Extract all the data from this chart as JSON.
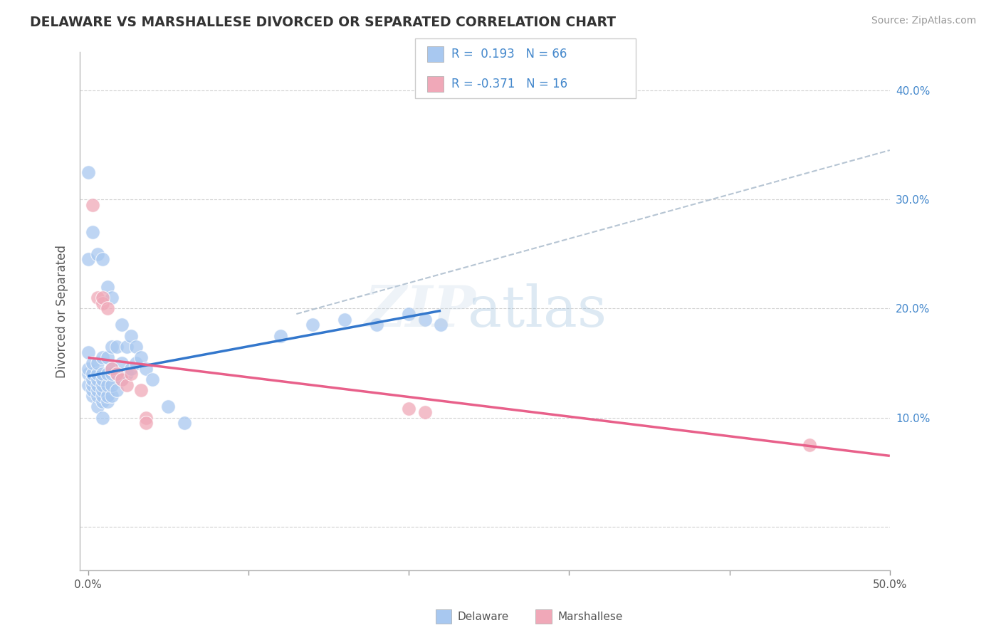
{
  "title": "DELAWARE VS MARSHALLESE DIVORCED OR SEPARATED CORRELATION CHART",
  "source": "Source: ZipAtlas.com",
  "ylabel": "Divorced or Separated",
  "ytick_values": [
    0.0,
    0.1,
    0.2,
    0.3,
    0.4
  ],
  "xlim": [
    -0.005,
    0.5
  ],
  "ylim": [
    -0.04,
    0.435
  ],
  "delaware_R": 0.193,
  "delaware_N": 66,
  "marshallese_R": -0.371,
  "marshallese_N": 16,
  "delaware_color": "#a8c8f0",
  "marshallese_color": "#f0a8b8",
  "delaware_line_color": "#3377cc",
  "marshallese_line_color": "#e8608a",
  "trend_line_color": "#aabbcc",
  "background_color": "#ffffff",
  "grid_color": "#cccccc",
  "delaware_x": [
    0.0,
    0.0,
    0.0,
    0.0,
    0.003,
    0.003,
    0.003,
    0.003,
    0.003,
    0.003,
    0.006,
    0.006,
    0.006,
    0.006,
    0.006,
    0.006,
    0.006,
    0.009,
    0.009,
    0.009,
    0.009,
    0.009,
    0.009,
    0.009,
    0.009,
    0.012,
    0.012,
    0.012,
    0.012,
    0.012,
    0.015,
    0.015,
    0.015,
    0.015,
    0.015,
    0.018,
    0.018,
    0.018,
    0.021,
    0.021,
    0.021,
    0.024,
    0.024,
    0.027,
    0.027,
    0.03,
    0.03,
    0.033,
    0.036,
    0.04,
    0.05,
    0.06,
    0.12,
    0.14,
    0.16,
    0.18,
    0.2,
    0.21,
    0.22,
    0.0,
    0.0,
    0.003,
    0.006,
    0.009,
    0.012,
    0.015
  ],
  "delaware_y": [
    0.13,
    0.14,
    0.145,
    0.16,
    0.12,
    0.125,
    0.13,
    0.135,
    0.14,
    0.15,
    0.11,
    0.12,
    0.125,
    0.13,
    0.135,
    0.14,
    0.15,
    0.1,
    0.115,
    0.12,
    0.125,
    0.13,
    0.135,
    0.14,
    0.155,
    0.115,
    0.12,
    0.13,
    0.14,
    0.155,
    0.12,
    0.13,
    0.14,
    0.145,
    0.165,
    0.125,
    0.14,
    0.165,
    0.135,
    0.15,
    0.185,
    0.14,
    0.165,
    0.145,
    0.175,
    0.15,
    0.165,
    0.155,
    0.145,
    0.135,
    0.11,
    0.095,
    0.175,
    0.185,
    0.19,
    0.185,
    0.195,
    0.19,
    0.185,
    0.325,
    0.245,
    0.27,
    0.25,
    0.245,
    0.22,
    0.21
  ],
  "marshallese_x": [
    0.003,
    0.006,
    0.009,
    0.009,
    0.012,
    0.015,
    0.018,
    0.021,
    0.024,
    0.027,
    0.033,
    0.036,
    0.036,
    0.2,
    0.21,
    0.45
  ],
  "marshallese_y": [
    0.295,
    0.21,
    0.205,
    0.21,
    0.2,
    0.145,
    0.14,
    0.135,
    0.13,
    0.14,
    0.125,
    0.1,
    0.095,
    0.108,
    0.105,
    0.075
  ],
  "delaware_line_x": [
    0.0,
    0.22
  ],
  "delaware_line_y": [
    0.138,
    0.198
  ],
  "marshallese_line_x": [
    0.0,
    0.5
  ],
  "marshallese_line_y": [
    0.155,
    0.065
  ],
  "dash_line_x": [
    0.13,
    0.5
  ],
  "dash_line_y": [
    0.195,
    0.345
  ]
}
